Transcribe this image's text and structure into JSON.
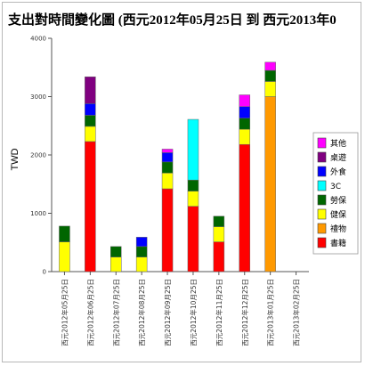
{
  "chart_data": {
    "type": "bar",
    "stacked": true,
    "title": "支出對時間變化圖 (西元2012年05月25日 到 西元2013年0",
    "ylabel": "TWD",
    "xlabel": "",
    "ylim": [
      0,
      4000
    ],
    "yticks": [
      0,
      1000,
      2000,
      3000,
      4000
    ],
    "grid": false,
    "legend_position": "right",
    "categories": [
      "西元2012年05月25日",
      "西元2012年06月25日",
      "西元2012年07月25日",
      "西元2012年08月25日",
      "西元2012年09月25日",
      "西元2012年10月25日",
      "西元2012年11月25日",
      "西元2012年12月25日",
      "西元2013年01月25日",
      "西元2013年02月25日"
    ],
    "series": [
      {
        "name": "書籍",
        "color": "#ff0000",
        "values": [
          0,
          2230,
          0,
          0,
          1420,
          1120,
          510,
          2180,
          0,
          0
        ]
      },
      {
        "name": "禮物",
        "color": "#ff9900",
        "values": [
          0,
          0,
          0,
          0,
          0,
          0,
          0,
          0,
          3000,
          0
        ]
      },
      {
        "name": "健保",
        "color": "#ffff00",
        "values": [
          510,
          260,
          250,
          250,
          270,
          260,
          260,
          260,
          260,
          0
        ]
      },
      {
        "name": "勞保",
        "color": "#006600",
        "values": [
          270,
          190,
          180,
          180,
          190,
          190,
          180,
          190,
          190,
          0
        ]
      },
      {
        "name": "3C",
        "color": "#00ffff",
        "values": [
          0,
          0,
          0,
          0,
          0,
          1040,
          0,
          0,
          0,
          0
        ]
      },
      {
        "name": "外食",
        "color": "#0000ff",
        "values": [
          0,
          200,
          0,
          160,
          160,
          0,
          0,
          200,
          0,
          0
        ]
      },
      {
        "name": "桌遊",
        "color": "#800080",
        "values": [
          0,
          460,
          0,
          0,
          0,
          0,
          0,
          0,
          0,
          0
        ]
      },
      {
        "name": "其他",
        "color": "#ff00ff",
        "values": [
          0,
          0,
          0,
          0,
          60,
          0,
          0,
          200,
          140,
          0
        ]
      }
    ]
  }
}
